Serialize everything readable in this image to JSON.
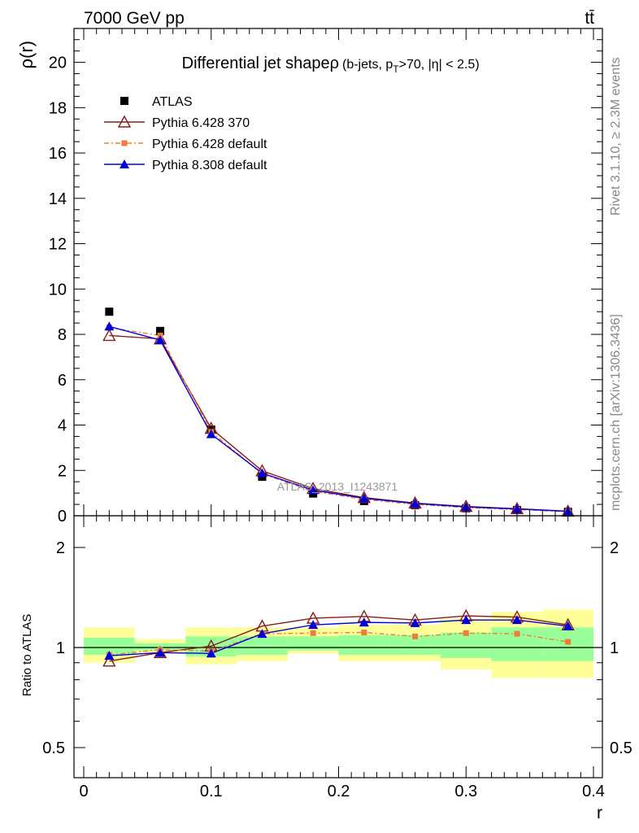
{
  "header": {
    "energy_label": "7000 GeV pp",
    "process_label": "tt̄"
  },
  "side_labels": {
    "rivet": "Rivet 3.1.10, ≥ 2.3M events",
    "mcplots": "mcplots.cern.ch [arXiv:1306.3436]"
  },
  "chart_data": [
    {
      "type": "line",
      "title": "Differential jet shapeρ",
      "subtitle_parts": [
        "(b-jets, p",
        "T",
        ">70, |η| < 2.5)"
      ],
      "ylabel": "ρ(r)",
      "xlabel": "r",
      "xlim": [
        -0.01,
        0.4
      ],
      "ylim": [
        0,
        21.5
      ],
      "yticks": [
        0,
        2,
        4,
        6,
        8,
        10,
        12,
        14,
        16,
        18,
        20
      ],
      "watermark": "ATLAS_2013_I1243871",
      "legend_placement": "top-left",
      "x": [
        0.02,
        0.06,
        0.1,
        0.14,
        0.18,
        0.22,
        0.26,
        0.3,
        0.34,
        0.38
      ],
      "series": [
        {
          "name": "ATLAS",
          "marker": "square",
          "color": "#000000",
          "values": [
            9.0,
            8.15,
            3.8,
            1.72,
            0.98,
            0.65,
            0.47,
            0.33,
            0.25,
            0.17
          ]
        },
        {
          "name": "Pythia 6.428 370",
          "marker": "triangle-open",
          "color": "#8b1a1a",
          "dash": "solid",
          "values": [
            7.95,
            7.8,
            3.85,
            1.98,
            1.2,
            0.8,
            0.56,
            0.41,
            0.31,
            0.2
          ]
        },
        {
          "name": "Pythia 6.428 default",
          "marker": "square-small",
          "color": "#f07c3a",
          "dash": "dashdot",
          "values": [
            8.3,
            7.95,
            3.7,
            1.85,
            1.08,
            0.72,
            0.5,
            0.36,
            0.27,
            0.18
          ]
        },
        {
          "name": "Pythia 8.308 default",
          "marker": "triangle",
          "color": "#0000dd",
          "dash": "solid",
          "values": [
            8.35,
            7.75,
            3.6,
            1.88,
            1.13,
            0.77,
            0.54,
            0.39,
            0.3,
            0.195
          ]
        }
      ]
    },
    {
      "type": "line",
      "ylabel": "Ratio to ATLAS",
      "xlabel": "r",
      "xlim": [
        -0.01,
        0.4
      ],
      "ylim": [
        0.4,
        2.3
      ],
      "ylog": true,
      "yticks": [
        0.5,
        1,
        2
      ],
      "xticks": [
        0,
        0.1,
        0.2,
        0.3,
        0.4
      ],
      "x": [
        0.02,
        0.06,
        0.1,
        0.14,
        0.18,
        0.22,
        0.26,
        0.3,
        0.34,
        0.38
      ],
      "bands": {
        "edges": [
          0.0,
          0.04,
          0.08,
          0.12,
          0.16,
          0.2,
          0.24,
          0.28,
          0.32,
          0.36,
          0.4
        ],
        "yellow_low": [
          0.9,
          0.96,
          0.89,
          0.91,
          0.96,
          0.91,
          0.91,
          0.86,
          0.81,
          0.81
        ],
        "yellow_high": [
          1.15,
          1.06,
          1.15,
          1.15,
          1.15,
          1.17,
          1.17,
          1.22,
          1.28,
          1.3
        ],
        "green_low": [
          0.95,
          0.98,
          0.94,
          0.95,
          0.98,
          0.95,
          0.95,
          0.93,
          0.91,
          0.91
        ],
        "green_high": [
          1.07,
          1.03,
          1.08,
          1.08,
          1.08,
          1.09,
          1.09,
          1.11,
          1.15,
          1.15
        ]
      },
      "series": [
        {
          "name": "Pythia 6.428 370",
          "marker": "triangle-open",
          "color": "#8b1a1a",
          "dash": "solid",
          "values": [
            0.91,
            0.965,
            1.01,
            1.16,
            1.225,
            1.24,
            1.21,
            1.245,
            1.235,
            1.17
          ]
        },
        {
          "name": "Pythia 6.428 default",
          "marker": "square-small",
          "color": "#f07c3a",
          "dash": "dashdot",
          "values": [
            0.95,
            0.985,
            0.975,
            1.1,
            1.105,
            1.11,
            1.08,
            1.105,
            1.1,
            1.04
          ]
        },
        {
          "name": "Pythia 8.308 default",
          "marker": "triangle",
          "color": "#0000dd",
          "dash": "solid",
          "values": [
            0.945,
            0.965,
            0.96,
            1.1,
            1.17,
            1.19,
            1.185,
            1.21,
            1.21,
            1.16
          ]
        }
      ]
    }
  ]
}
